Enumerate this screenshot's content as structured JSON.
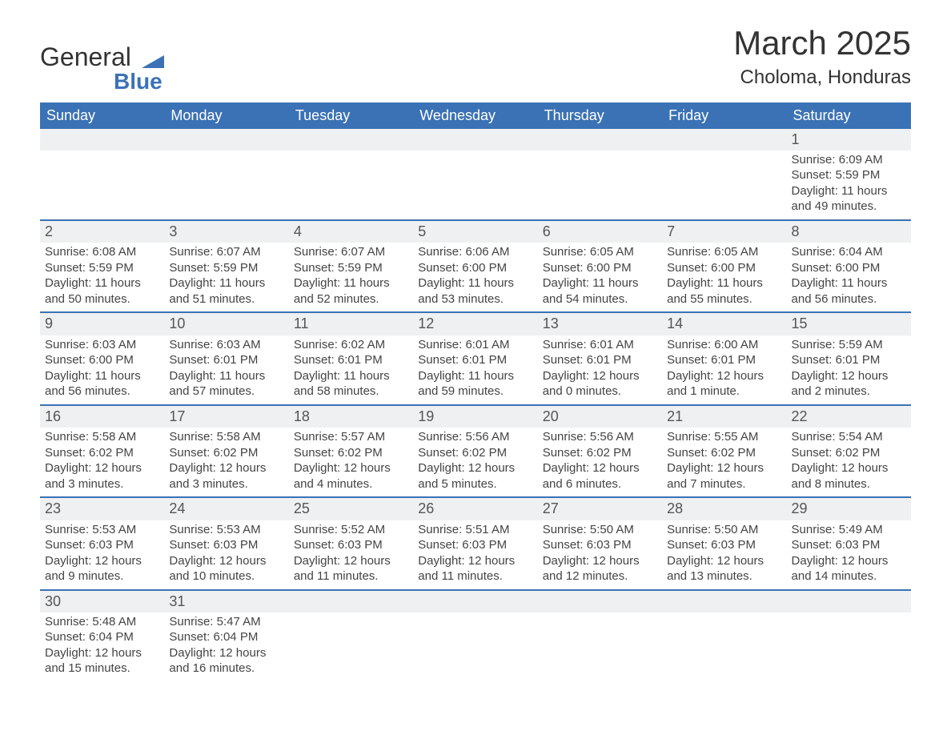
{
  "brand": {
    "name": "General",
    "sub": "Blue"
  },
  "title": "March 2025",
  "location": "Choloma, Honduras",
  "headers": [
    "Sunday",
    "Monday",
    "Tuesday",
    "Wednesday",
    "Thursday",
    "Friday",
    "Saturday"
  ],
  "colors": {
    "header_bg": "#3b72b5",
    "header_text": "#ffffff",
    "daynum_bg": "#eef0f2",
    "text": "#444444",
    "sep": "#3b72b5"
  },
  "weeks": [
    [
      null,
      null,
      null,
      null,
      null,
      null,
      {
        "d": "1",
        "sr": "Sunrise: 6:09 AM",
        "ss": "Sunset: 5:59 PM",
        "dl": "Daylight: 11 hours and 49 minutes."
      }
    ],
    [
      {
        "d": "2",
        "sr": "Sunrise: 6:08 AM",
        "ss": "Sunset: 5:59 PM",
        "dl": "Daylight: 11 hours and 50 minutes."
      },
      {
        "d": "3",
        "sr": "Sunrise: 6:07 AM",
        "ss": "Sunset: 5:59 PM",
        "dl": "Daylight: 11 hours and 51 minutes."
      },
      {
        "d": "4",
        "sr": "Sunrise: 6:07 AM",
        "ss": "Sunset: 5:59 PM",
        "dl": "Daylight: 11 hours and 52 minutes."
      },
      {
        "d": "5",
        "sr": "Sunrise: 6:06 AM",
        "ss": "Sunset: 6:00 PM",
        "dl": "Daylight: 11 hours and 53 minutes."
      },
      {
        "d": "6",
        "sr": "Sunrise: 6:05 AM",
        "ss": "Sunset: 6:00 PM",
        "dl": "Daylight: 11 hours and 54 minutes."
      },
      {
        "d": "7",
        "sr": "Sunrise: 6:05 AM",
        "ss": "Sunset: 6:00 PM",
        "dl": "Daylight: 11 hours and 55 minutes."
      },
      {
        "d": "8",
        "sr": "Sunrise: 6:04 AM",
        "ss": "Sunset: 6:00 PM",
        "dl": "Daylight: 11 hours and 56 minutes."
      }
    ],
    [
      {
        "d": "9",
        "sr": "Sunrise: 6:03 AM",
        "ss": "Sunset: 6:00 PM",
        "dl": "Daylight: 11 hours and 56 minutes."
      },
      {
        "d": "10",
        "sr": "Sunrise: 6:03 AM",
        "ss": "Sunset: 6:01 PM",
        "dl": "Daylight: 11 hours and 57 minutes."
      },
      {
        "d": "11",
        "sr": "Sunrise: 6:02 AM",
        "ss": "Sunset: 6:01 PM",
        "dl": "Daylight: 11 hours and 58 minutes."
      },
      {
        "d": "12",
        "sr": "Sunrise: 6:01 AM",
        "ss": "Sunset: 6:01 PM",
        "dl": "Daylight: 11 hours and 59 minutes."
      },
      {
        "d": "13",
        "sr": "Sunrise: 6:01 AM",
        "ss": "Sunset: 6:01 PM",
        "dl": "Daylight: 12 hours and 0 minutes."
      },
      {
        "d": "14",
        "sr": "Sunrise: 6:00 AM",
        "ss": "Sunset: 6:01 PM",
        "dl": "Daylight: 12 hours and 1 minute."
      },
      {
        "d": "15",
        "sr": "Sunrise: 5:59 AM",
        "ss": "Sunset: 6:01 PM",
        "dl": "Daylight: 12 hours and 2 minutes."
      }
    ],
    [
      {
        "d": "16",
        "sr": "Sunrise: 5:58 AM",
        "ss": "Sunset: 6:02 PM",
        "dl": "Daylight: 12 hours and 3 minutes."
      },
      {
        "d": "17",
        "sr": "Sunrise: 5:58 AM",
        "ss": "Sunset: 6:02 PM",
        "dl": "Daylight: 12 hours and 3 minutes."
      },
      {
        "d": "18",
        "sr": "Sunrise: 5:57 AM",
        "ss": "Sunset: 6:02 PM",
        "dl": "Daylight: 12 hours and 4 minutes."
      },
      {
        "d": "19",
        "sr": "Sunrise: 5:56 AM",
        "ss": "Sunset: 6:02 PM",
        "dl": "Daylight: 12 hours and 5 minutes."
      },
      {
        "d": "20",
        "sr": "Sunrise: 5:56 AM",
        "ss": "Sunset: 6:02 PM",
        "dl": "Daylight: 12 hours and 6 minutes."
      },
      {
        "d": "21",
        "sr": "Sunrise: 5:55 AM",
        "ss": "Sunset: 6:02 PM",
        "dl": "Daylight: 12 hours and 7 minutes."
      },
      {
        "d": "22",
        "sr": "Sunrise: 5:54 AM",
        "ss": "Sunset: 6:02 PM",
        "dl": "Daylight: 12 hours and 8 minutes."
      }
    ],
    [
      {
        "d": "23",
        "sr": "Sunrise: 5:53 AM",
        "ss": "Sunset: 6:03 PM",
        "dl": "Daylight: 12 hours and 9 minutes."
      },
      {
        "d": "24",
        "sr": "Sunrise: 5:53 AM",
        "ss": "Sunset: 6:03 PM",
        "dl": "Daylight: 12 hours and 10 minutes."
      },
      {
        "d": "25",
        "sr": "Sunrise: 5:52 AM",
        "ss": "Sunset: 6:03 PM",
        "dl": "Daylight: 12 hours and 11 minutes."
      },
      {
        "d": "26",
        "sr": "Sunrise: 5:51 AM",
        "ss": "Sunset: 6:03 PM",
        "dl": "Daylight: 12 hours and 11 minutes."
      },
      {
        "d": "27",
        "sr": "Sunrise: 5:50 AM",
        "ss": "Sunset: 6:03 PM",
        "dl": "Daylight: 12 hours and 12 minutes."
      },
      {
        "d": "28",
        "sr": "Sunrise: 5:50 AM",
        "ss": "Sunset: 6:03 PM",
        "dl": "Daylight: 12 hours and 13 minutes."
      },
      {
        "d": "29",
        "sr": "Sunrise: 5:49 AM",
        "ss": "Sunset: 6:03 PM",
        "dl": "Daylight: 12 hours and 14 minutes."
      }
    ],
    [
      {
        "d": "30",
        "sr": "Sunrise: 5:48 AM",
        "ss": "Sunset: 6:04 PM",
        "dl": "Daylight: 12 hours and 15 minutes."
      },
      {
        "d": "31",
        "sr": "Sunrise: 5:47 AM",
        "ss": "Sunset: 6:04 PM",
        "dl": "Daylight: 12 hours and 16 minutes."
      },
      null,
      null,
      null,
      null,
      null
    ]
  ]
}
